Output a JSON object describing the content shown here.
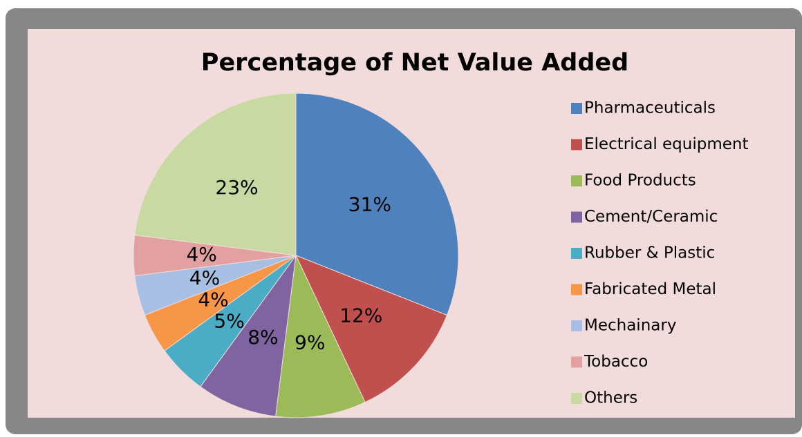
{
  "chart_data": {
    "type": "pie",
    "title": "Percentage of Net Value Added",
    "categories": [
      "Pharmaceuticals",
      "Electrical equipment",
      "Food Products",
      "Cement/Ceramic",
      "Rubber & Plastic",
      "Fabricated Metal",
      "Mechainary",
      "Tobacco",
      "Others"
    ],
    "values": [
      31,
      12,
      9,
      8,
      5,
      4,
      4,
      4,
      23
    ],
    "value_labels": [
      "31%",
      "12%",
      "9%",
      "8%",
      "5%",
      "4%",
      "4%",
      "4%",
      "23%"
    ],
    "colors": [
      "#4f81bd",
      "#c0504d",
      "#9bbb59",
      "#8064a2",
      "#4bacc6",
      "#f79646",
      "#a6bfe2",
      "#e3a0a0",
      "#c8d9a2"
    ],
    "legend": "right"
  }
}
